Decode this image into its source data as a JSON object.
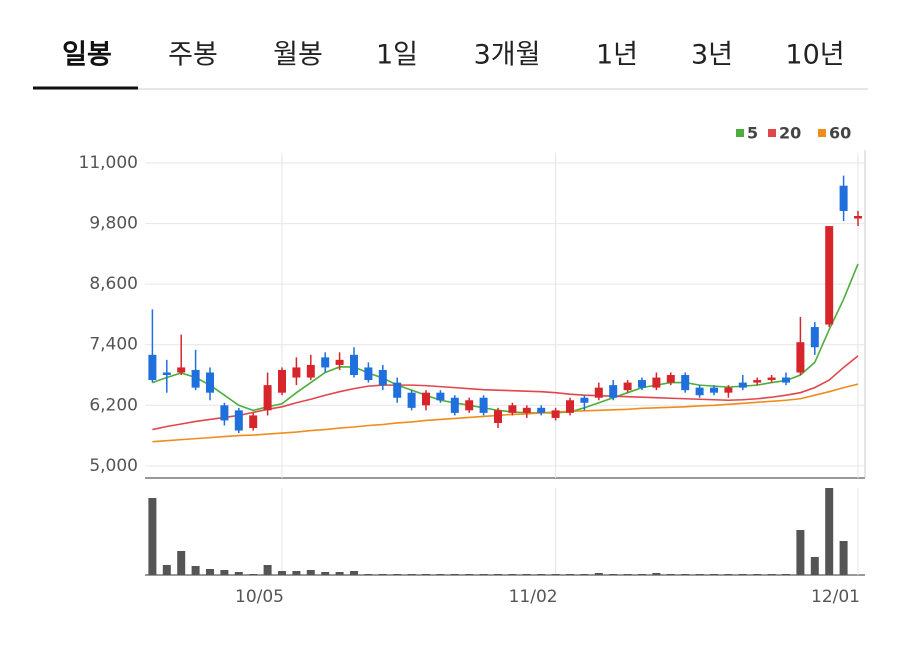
{
  "tabs": [
    "일봉",
    "주봉",
    "월봉",
    "1일",
    "3개월",
    "1년",
    "3년",
    "10년"
  ],
  "chart_data": {
    "type": "candlestick",
    "categories": [
      null,
      null,
      null,
      null,
      null,
      null,
      null,
      null,
      null,
      "10/05",
      null,
      null,
      null,
      null,
      null,
      null,
      null,
      null,
      null,
      null,
      null,
      null,
      null,
      null,
      null,
      null,
      null,
      null,
      "11/02",
      null,
      null,
      null,
      null,
      null,
      null,
      null,
      null,
      null,
      null,
      null,
      null,
      null,
      null,
      null,
      null,
      null,
      null,
      null,
      null,
      "12/01"
    ],
    "open": [
      7200,
      6850,
      6850,
      6900,
      6850,
      6200,
      6100,
      5750,
      6100,
      6450,
      6750,
      6750,
      7150,
      7000,
      7200,
      6950,
      6900,
      6650,
      6450,
      6200,
      6450,
      6350,
      6100,
      6350,
      5850,
      6050,
      6050,
      6150,
      5950,
      6050,
      6350,
      6350,
      6600,
      6500,
      6700,
      6550,
      6650,
      6800,
      6550,
      6550,
      6450,
      6650,
      6650,
      6700,
      6750,
      6850,
      7750,
      7800,
      10550,
      9900
    ],
    "high": [
      8100,
      7100,
      7600,
      7300,
      6950,
      6250,
      6150,
      6050,
      6850,
      6950,
      7150,
      7200,
      7250,
      7250,
      7350,
      7050,
      7000,
      6750,
      6500,
      6500,
      6500,
      6400,
      6350,
      6400,
      6150,
      6250,
      6200,
      6200,
      6150,
      6350,
      6400,
      6650,
      6700,
      6700,
      6750,
      6850,
      6850,
      6850,
      6600,
      6600,
      6600,
      6800,
      6750,
      6800,
      6850,
      7950,
      7850,
      9750,
      10750,
      10050
    ],
    "low": [
      6650,
      6450,
      6800,
      6500,
      6300,
      5800,
      5650,
      5700,
      6000,
      6400,
      6600,
      6700,
      6850,
      6900,
      6750,
      6650,
      6500,
      6250,
      6100,
      6100,
      6250,
      6000,
      6050,
      6000,
      5750,
      6000,
      5950,
      6000,
      5900,
      6000,
      6100,
      6300,
      6300,
      6450,
      6500,
      6500,
      6600,
      6450,
      6350,
      6400,
      6350,
      6500,
      6600,
      6650,
      6600,
      6800,
      7200,
      7750,
      9850,
      9750
    ],
    "close": [
      6700,
      6800,
      6950,
      6550,
      6450,
      5900,
      5700,
      6000,
      6600,
      6900,
      6950,
      7000,
      6950,
      7100,
      6800,
      6700,
      6600,
      6350,
      6150,
      6450,
      6300,
      6050,
      6300,
      6050,
      6100,
      6200,
      6150,
      6050,
      6100,
      6300,
      6250,
      6550,
      6350,
      6650,
      6550,
      6750,
      6800,
      6500,
      6400,
      6450,
      6550,
      6550,
      6700,
      6750,
      6650,
      7450,
      7350,
      9750,
      10050,
      9950
    ],
    "volume": [
      77,
      10,
      24,
      9,
      6,
      5,
      3,
      1,
      10,
      4,
      4,
      5,
      3,
      3,
      4,
      1,
      1,
      1,
      1,
      1,
      1,
      1,
      1,
      1,
      1,
      1,
      1,
      1,
      1,
      1,
      1,
      2,
      1,
      1,
      1,
      2,
      1,
      1,
      1,
      1,
      1,
      1,
      1,
      1,
      1,
      45,
      18,
      87,
      34,
      0
    ],
    "up_color": "#d7262b",
    "down_color": "#1f6fdc",
    "volume_color": "#555555",
    "series": [
      {
        "name": "5",
        "color": "#4caf3c",
        "values": [
          6650,
          6750,
          6840,
          6750,
          6600,
          6400,
          6200,
          6100,
          6170,
          6230,
          6450,
          6650,
          6850,
          6960,
          6960,
          6840,
          6740,
          6600,
          6500,
          6400,
          6300,
          6250,
          6200,
          6150,
          6100,
          6070,
          6050,
          6050,
          6050,
          6070,
          6150,
          6250,
          6350,
          6450,
          6550,
          6600,
          6650,
          6650,
          6600,
          6580,
          6560,
          6580,
          6600,
          6650,
          6690,
          6800,
          7050,
          7700,
          8300,
          9000
        ]
      },
      {
        "name": "20",
        "color": "#e0474c",
        "values": [
          5720,
          5780,
          5830,
          5880,
          5920,
          5960,
          6000,
          6060,
          6120,
          6170,
          6250,
          6320,
          6400,
          6470,
          6530,
          6580,
          6600,
          6600,
          6600,
          6590,
          6570,
          6550,
          6530,
          6510,
          6500,
          6490,
          6480,
          6470,
          6450,
          6420,
          6400,
          6390,
          6380,
          6370,
          6360,
          6350,
          6340,
          6330,
          6320,
          6310,
          6300,
          6310,
          6330,
          6360,
          6400,
          6450,
          6550,
          6700,
          6950,
          7180
        ]
      },
      {
        "name": "60",
        "color": "#f08c1e",
        "values": [
          5480,
          5500,
          5520,
          5540,
          5560,
          5580,
          5600,
          5610,
          5630,
          5650,
          5670,
          5700,
          5720,
          5750,
          5770,
          5800,
          5820,
          5850,
          5870,
          5900,
          5920,
          5940,
          5960,
          5980,
          6000,
          6020,
          6030,
          6050,
          6070,
          6080,
          6090,
          6100,
          6110,
          6120,
          6140,
          6150,
          6160,
          6170,
          6190,
          6200,
          6220,
          6240,
          6260,
          6280,
          6300,
          6330,
          6400,
          6470,
          6550,
          6620
        ]
      }
    ],
    "ylim": [
      4760,
      11000
    ],
    "yticks": [
      {
        "value": 5000,
        "label": "5,000"
      },
      {
        "value": 6200,
        "label": "6,200"
      },
      {
        "value": 7400,
        "label": "7,400"
      },
      {
        "value": 8600,
        "label": "8,600"
      },
      {
        "value": 9800,
        "label": "9,800"
      },
      {
        "value": 11000,
        "label": "11,000"
      }
    ],
    "grid": true
  }
}
